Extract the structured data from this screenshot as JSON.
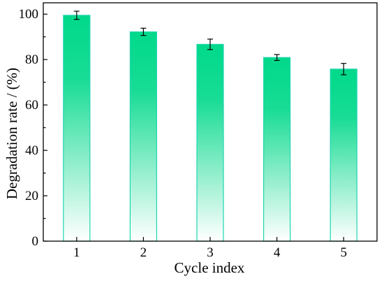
{
  "chart_data": {
    "type": "bar",
    "title": "",
    "xlabel": "Cycle index",
    "ylabel": "Degradation rate / (%)",
    "categories": [
      "1",
      "2",
      "3",
      "4",
      "5"
    ],
    "values": [
      99.5,
      92.2,
      86.7,
      80.9,
      75.8
    ],
    "errors": [
      1.8,
      1.6,
      2.3,
      1.3,
      2.5
    ],
    "ylim": [
      0,
      105
    ],
    "yticks": [
      "0",
      "20",
      "40",
      "60",
      "80",
      "100"
    ],
    "grid": false,
    "legend": "none",
    "colors": {
      "bar_top": "#00d98a",
      "bar_bottom": "#ffffff",
      "bar_edge": "#1fd6b0",
      "error_bar": "#000000",
      "axis": "#000000"
    }
  }
}
